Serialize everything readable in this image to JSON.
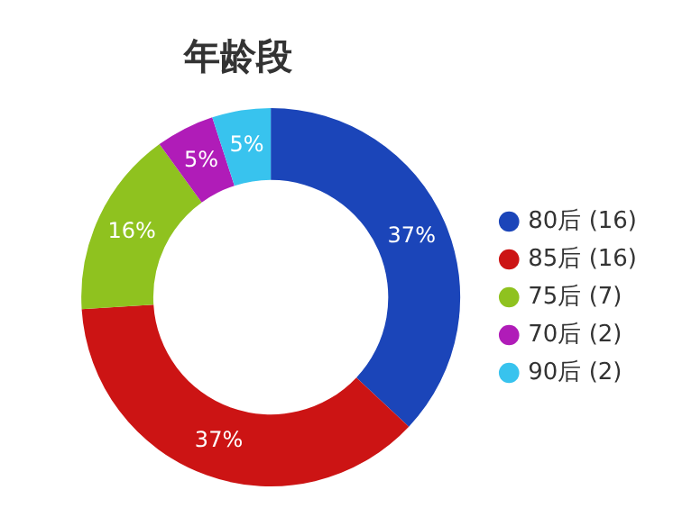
{
  "chart_data": {
    "type": "donut",
    "title": "年龄段",
    "categories": [
      "80后 (16)",
      "85后 (16)",
      "75后 (7)",
      "70后 (2)",
      "90后 (2)"
    ],
    "values": [
      37,
      37,
      16,
      5,
      5
    ],
    "value_labels": [
      "37%",
      "37%",
      "16%",
      "5%",
      "5%"
    ],
    "colors": [
      "#1b45b9",
      "#cc1414",
      "#8fc21f",
      "#b01cb8",
      "#38c3ee"
    ],
    "legend": "right"
  }
}
